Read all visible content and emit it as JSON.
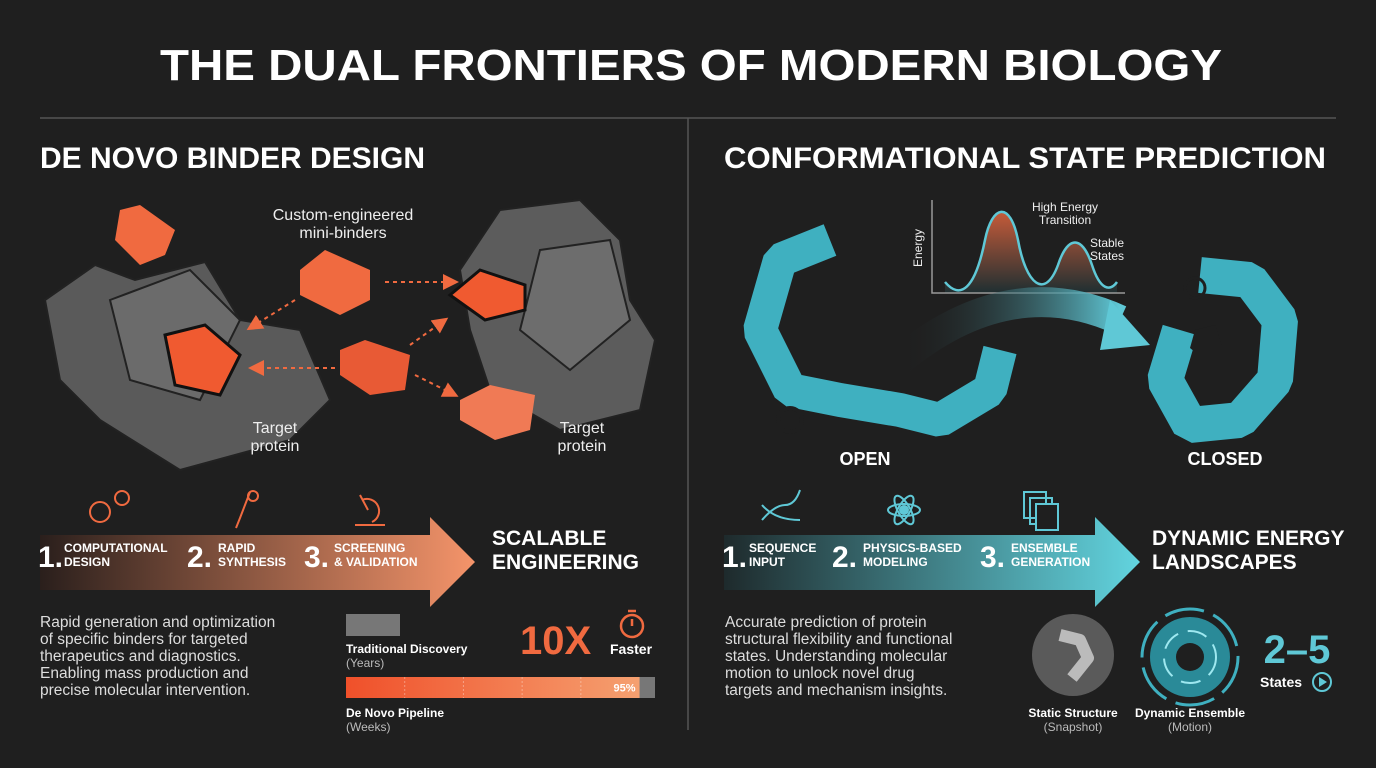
{
  "title": "THE DUAL FRONTIERS OF MODERN BIOLOGY",
  "left": {
    "heading": "DE NOVO BINDER DESIGN",
    "callout": [
      "Custom-engineered",
      "mini-binders"
    ],
    "target_labels": [
      [
        "Target",
        "protein"
      ],
      [
        "Target",
        "protein"
      ]
    ],
    "steps": [
      {
        "number": "1.",
        "label": [
          "COMPUTATIONAL",
          "DESIGN"
        ]
      },
      {
        "number": "2.",
        "label": [
          "RAPID",
          "SYNTHESIS"
        ]
      },
      {
        "number": "3.",
        "label": [
          "SCREENING",
          "& VALIDATION"
        ]
      }
    ],
    "outcome": [
      "SCALABLE",
      "ENGINEERING"
    ],
    "description": [
      "Rapid generation and optimization",
      "of specific binders for targeted",
      "therapeutics and diagnostics.",
      "Enabling mass production and",
      "precise molecular intervention."
    ],
    "comparison": {
      "traditional": {
        "label": "Traditional Discovery",
        "unit": "(Years)"
      },
      "de_novo": {
        "label": "De Novo Pipeline",
        "unit": "(Weeks)",
        "value": 95,
        "value_label": "95%"
      }
    },
    "speedup": {
      "value": "10X",
      "label": "Faster"
    }
  },
  "right": {
    "heading": "CONFORMATIONAL STATE PREDICTION",
    "energy_plot": {
      "axis_label": "Energy",
      "peak_label": [
        "High Energy",
        "Transition"
      ],
      "valley_label": [
        "Stable",
        "States"
      ]
    },
    "states": [
      "OPEN",
      "CLOSED"
    ],
    "steps": [
      {
        "number": "1.",
        "label": [
          "SEQUENCE",
          "INPUT"
        ]
      },
      {
        "number": "2.",
        "label": [
          "PHYSICS-BASED",
          "MODELING"
        ]
      },
      {
        "number": "3.",
        "label": [
          "ENSEMBLE",
          "GENERATION"
        ]
      }
    ],
    "outcome": [
      "DYNAMIC ENERGY",
      "LANDSCAPES"
    ],
    "description": [
      "Accurate prediction of protein",
      "structural flexibility and functional",
      "states. Understanding molecular",
      "motion to unlock novel drug",
      "targets and mechanism insights."
    ],
    "static": {
      "label": "Static Structure",
      "sub": "(Snapshot)"
    },
    "dynamic": {
      "label": "Dynamic Ensemble",
      "sub": "(Motion)"
    },
    "state_count": {
      "value": "2–5",
      "label": "States"
    }
  }
}
